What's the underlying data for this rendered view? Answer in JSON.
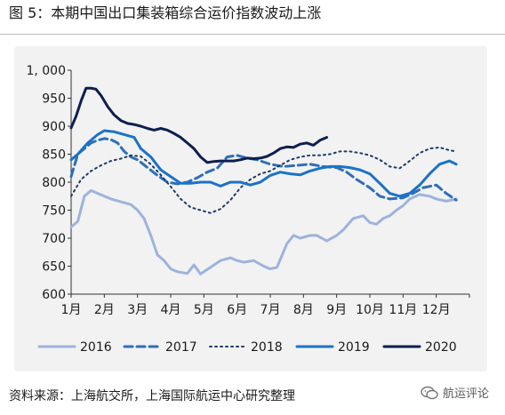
{
  "header": {
    "title": "图 5：本期中国出口集装箱综合运价指数波动上涨"
  },
  "footer": {
    "source": "资料来源：上海航交所，上海国际航运中心研究整理",
    "watermark": "航运评论"
  },
  "chart_data": {
    "type": "line",
    "title": "",
    "xlabel": "",
    "ylabel": "",
    "ylim": [
      600,
      1000
    ],
    "yticks": [
      600,
      650,
      700,
      750,
      800,
      850,
      900,
      950,
      1000
    ],
    "ytick_labels": [
      "600",
      "650",
      "700",
      "750",
      "800",
      "850",
      "900",
      "950",
      "1, 000"
    ],
    "xlim": [
      1,
      13
    ],
    "xticks": [
      1,
      2,
      3,
      4,
      5,
      6,
      7,
      8,
      9,
      10,
      11,
      12
    ],
    "xtick_labels": [
      "1月",
      "2月",
      "3月",
      "4月",
      "5月",
      "6月",
      "7月",
      "8月",
      "9月",
      "10月",
      "11月",
      "12月"
    ],
    "grid": false,
    "legend_position": "bottom",
    "series": [
      {
        "name": "2016",
        "color": "#9db3dc",
        "dash": "solid",
        "width": 3,
        "x": [
          1,
          1.2,
          1.4,
          1.6,
          1.8,
          2,
          2.2,
          2.5,
          2.8,
          3,
          3.2,
          3.4,
          3.6,
          3.8,
          4,
          4.2,
          4.5,
          4.7,
          4.9,
          5.2,
          5.5,
          5.8,
          6,
          6.2,
          6.5,
          6.8,
          7,
          7.2,
          7.5,
          7.7,
          7.9,
          8.2,
          8.4,
          8.7,
          9,
          9.2,
          9.5,
          9.8,
          10,
          10.2,
          10.4,
          10.6,
          10.8,
          11,
          11.2,
          11.5,
          11.8,
          12,
          12.3,
          12.6
        ],
        "y": [
          720,
          730,
          775,
          785,
          780,
          775,
          770,
          765,
          760,
          750,
          735,
          705,
          670,
          660,
          645,
          640,
          637,
          652,
          636,
          648,
          660,
          665,
          660,
          657,
          660,
          650,
          645,
          648,
          690,
          705,
          700,
          705,
          705,
          695,
          705,
          715,
          735,
          740,
          728,
          725,
          735,
          740,
          750,
          758,
          770,
          778,
          775,
          770,
          766,
          770
        ]
      },
      {
        "name": "2017",
        "color": "#2e6fb8",
        "dash": "dashed",
        "width": 3,
        "x": [
          1,
          1.2,
          1.4,
          1.6,
          1.8,
          2,
          2.2,
          2.4,
          2.6,
          2.8,
          3,
          3.3,
          3.6,
          3.9,
          4.2,
          4.5,
          4.8,
          5.1,
          5.4,
          5.7,
          6,
          6.3,
          6.6,
          7,
          7.4,
          7.8,
          8.2,
          8.6,
          9,
          9.3,
          9.6,
          10,
          10.3,
          10.6,
          11,
          11.3,
          11.6,
          12,
          12.3,
          12.6
        ],
        "y": [
          810,
          850,
          860,
          870,
          875,
          878,
          876,
          870,
          855,
          845,
          840,
          826,
          812,
          800,
          797,
          800,
          808,
          818,
          825,
          845,
          848,
          843,
          840,
          832,
          828,
          830,
          832,
          828,
          826,
          818,
          805,
          790,
          775,
          770,
          772,
          780,
          790,
          795,
          780,
          768
        ]
      },
      {
        "name": "2018",
        "color": "#1f3a6b",
        "dash": "dotted",
        "width": 2,
        "x": [
          1,
          1.3,
          1.6,
          1.9,
          2.2,
          2.5,
          2.8,
          3.1,
          3.4,
          3.7,
          4,
          4.3,
          4.6,
          4.9,
          5.2,
          5.5,
          5.8,
          6.1,
          6.4,
          6.7,
          7,
          7.3,
          7.6,
          7.9,
          8.2,
          8.5,
          8.8,
          9.1,
          9.4,
          9.7,
          10,
          10.3,
          10.6,
          10.9,
          11.2,
          11.5,
          11.8,
          12.1,
          12.4,
          12.6
        ],
        "y": [
          775,
          805,
          820,
          830,
          838,
          842,
          848,
          846,
          832,
          813,
          792,
          770,
          755,
          750,
          745,
          752,
          768,
          790,
          805,
          815,
          820,
          830,
          840,
          845,
          848,
          848,
          850,
          855,
          855,
          852,
          848,
          840,
          828,
          825,
          838,
          852,
          860,
          862,
          857,
          855
        ]
      },
      {
        "name": "2019",
        "color": "#1a73c6",
        "dash": "solid",
        "width": 3,
        "x": [
          1,
          1.2,
          1.5,
          1.8,
          2,
          2.3,
          2.6,
          2.9,
          3.1,
          3.4,
          3.7,
          4,
          4.3,
          4.6,
          4.9,
          5.2,
          5.5,
          5.8,
          6.1,
          6.4,
          6.7,
          7,
          7.3,
          7.6,
          7.9,
          8.2,
          8.5,
          8.8,
          9.1,
          9.4,
          9.7,
          10,
          10.3,
          10.6,
          10.9,
          11.2,
          11.5,
          11.8,
          12.1,
          12.4,
          12.6
        ],
        "y": [
          840,
          850,
          870,
          885,
          892,
          890,
          885,
          880,
          860,
          845,
          822,
          810,
          798,
          798,
          800,
          800,
          793,
          800,
          800,
          795,
          800,
          812,
          818,
          815,
          813,
          820,
          825,
          828,
          828,
          826,
          822,
          815,
          798,
          780,
          775,
          780,
          795,
          815,
          832,
          838,
          832
        ]
      },
      {
        "name": "2020",
        "color": "#0d1f4e",
        "dash": "solid",
        "width": 3,
        "x": [
          1,
          1.15,
          1.3,
          1.45,
          1.6,
          1.75,
          1.9,
          2.1,
          2.3,
          2.5,
          2.7,
          2.9,
          3.1,
          3.3,
          3.5,
          3.7,
          3.9,
          4.1,
          4.3,
          4.5,
          4.7,
          4.9,
          5.1,
          5.3,
          5.5,
          5.7,
          5.9,
          6.1,
          6.3,
          6.5,
          6.7,
          6.9,
          7.1,
          7.3,
          7.5,
          7.7,
          7.9,
          8.1,
          8.3,
          8.5,
          8.7
        ],
        "y": [
          897,
          918,
          945,
          968,
          968,
          966,
          955,
          935,
          920,
          910,
          905,
          903,
          900,
          896,
          893,
          896,
          893,
          887,
          880,
          870,
          860,
          845,
          835,
          837,
          838,
          838,
          838,
          840,
          843,
          842,
          843,
          846,
          852,
          860,
          863,
          862,
          868,
          870,
          866,
          875,
          880
        ]
      }
    ]
  }
}
